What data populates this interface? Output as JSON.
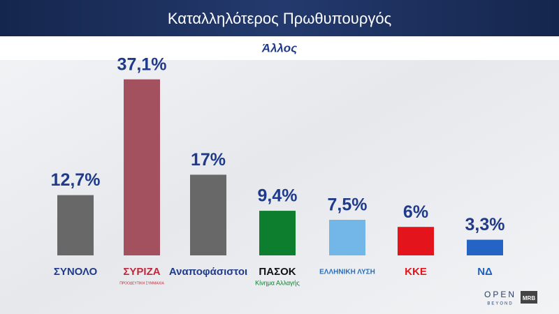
{
  "chart_data": {
    "type": "bar",
    "title": "Καταλληλότερος Πρωθυπουργός",
    "subtitle": "Άλλος",
    "categories": [
      "ΣΥΝΟΛΟ",
      "ΣΥΡΙΖΑ",
      "Αναποφάσιστοι",
      "ΠΑΣΟΚ",
      "ΕΛΛΗΝΙΚΗ ΛΥΣΗ",
      "ΚΚΕ",
      "ΝΔ"
    ],
    "category_notes": [
      null,
      "ΠΡΟΟΔΕΥΤΙΚΗ ΣΥΜΜΑΧΙΑ",
      null,
      "Κίνημα Αλλαγής",
      null,
      null,
      null
    ],
    "category_colors": [
      "#1f3a8a",
      "#c0283c",
      "#1f3a8a",
      "#111111",
      "#2a6fb8",
      "#e3141b",
      "#1e5fc0"
    ],
    "values": [
      12.7,
      37.1,
      17,
      9.4,
      7.5,
      6,
      3.3
    ],
    "value_labels": [
      "12,7%",
      "37,1%",
      "17%",
      "9,4%",
      "7,5%",
      "6%",
      "3,3%"
    ],
    "colors": [
      "#686868",
      "#a3505f",
      "#686868",
      "#0d7d2e",
      "#72b7e8",
      "#e3141b",
      "#2563c4"
    ],
    "branding": [
      "OPEN",
      "BEYOND",
      "MRB"
    ]
  }
}
